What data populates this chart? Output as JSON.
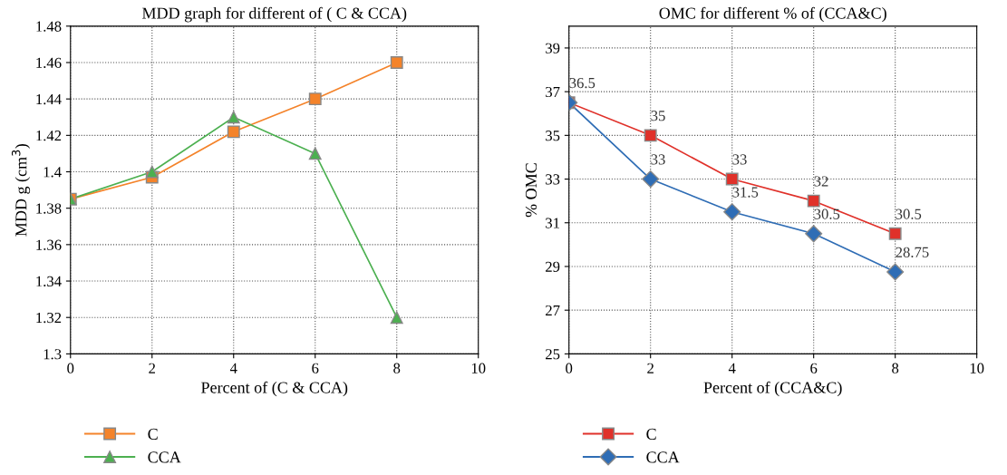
{
  "chart_data": [
    {
      "type": "line",
      "title": "MDD graph for different of ( C & CCA)",
      "xlabel": "Percent of (C & CCA)",
      "ylabel": "MDD g (cm$^{3}$)",
      "x": [
        0,
        2,
        4,
        6,
        8
      ],
      "xlim": [
        0,
        10
      ],
      "xticks": [
        0,
        2,
        4,
        6,
        8,
        10
      ],
      "ylim": [
        1.3,
        1.48
      ],
      "yticks": [
        1.3,
        1.32,
        1.34,
        1.36,
        1.38,
        1.4,
        1.42,
        1.44,
        1.46,
        1.48
      ],
      "grid": true,
      "legend": "bottom left",
      "line_style": "solid",
      "series": [
        {
          "name": "C",
          "color": "#f4832a",
          "marker": "square",
          "values": [
            1.385,
            1.397,
            1.422,
            1.44,
            1.46
          ]
        },
        {
          "name": "CCA",
          "color": "#4cb050",
          "marker": "triangle",
          "values": [
            1.385,
            1.4,
            1.43,
            1.41,
            1.32
          ]
        }
      ]
    },
    {
      "type": "line",
      "title": "OMC for different % of (CCA&C)",
      "xlabel": "Percent of (CCA&C)",
      "ylabel": "% OMC",
      "x": [
        0,
        2,
        4,
        6,
        8
      ],
      "xlim": [
        0,
        10
      ],
      "xticks": [
        0,
        2,
        4,
        6,
        8,
        10
      ],
      "ylim": [
        25,
        40
      ],
      "yticks": [
        25,
        27,
        29,
        31,
        33,
        35,
        37,
        39
      ],
      "grid": true,
      "legend": "bottom left",
      "line_style": "solid",
      "series": [
        {
          "name": "C",
          "color": "#e0312a",
          "marker": "square",
          "values": [
            36.5,
            35,
            33,
            32,
            30.5
          ],
          "value_labels": [
            "36.5",
            "35",
            "33",
            "32",
            "30.5"
          ]
        },
        {
          "name": "CCA",
          "color": "#2f6db5",
          "marker": "diamond",
          "values": [
            36.5,
            33,
            31.5,
            30.5,
            28.75
          ],
          "value_labels": [
            null,
            "33",
            "31.5",
            "30.5",
            "28.75"
          ]
        }
      ]
    }
  ]
}
